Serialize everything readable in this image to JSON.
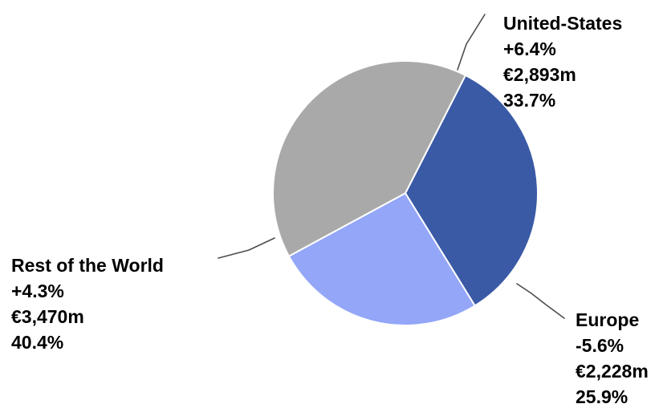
{
  "chart_data": {
    "type": "pie",
    "title": "",
    "slices": [
      {
        "name": "United-States",
        "change": "+6.4%",
        "amount": "€2,893m",
        "share_label": "33.7%",
        "value": 33.7,
        "color": "#3a5aa6"
      },
      {
        "name": "Europe",
        "change": "-5.6%",
        "amount": "€2,228m",
        "share_label": "25.9%",
        "value": 25.9,
        "color": "#93a6f8"
      },
      {
        "name": "Rest of the World",
        "change": "+4.3%",
        "amount": "€3,470m",
        "share_label": "40.4%",
        "value": 40.4,
        "color": "#a9a9a9"
      }
    ],
    "slice_edge_color": "#ffffff",
    "leader_line_color": "#4d4d4d"
  }
}
